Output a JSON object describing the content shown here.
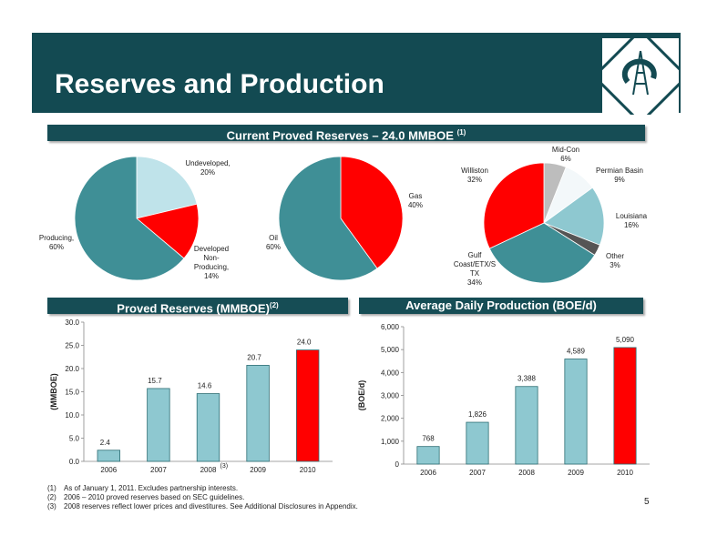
{
  "header": {
    "title": "Reserves and Production"
  },
  "sections": {
    "top_title": "Current Proved Reserves – 24.0 MMBOE",
    "top_title_sup": "(1)",
    "left_title": "Proved Reserves (MMBOE)",
    "left_title_sup": "(2)",
    "right_title": "Average Daily Production (BOE/d)"
  },
  "colors": {
    "teal": "#3f8f96",
    "light_blue": "#bfe3ea",
    "red": "#ff0000",
    "gray": "#bdbdbd",
    "mid_teal": "#8ec8d0",
    "dark_gray": "#555555",
    "header": "#134a52"
  },
  "chart_data": [
    {
      "type": "pie",
      "labels": [
        "Undeveloped, 20%",
        "Developed Non-Producing, 14%",
        "Producing, 60%"
      ],
      "values": [
        20,
        14,
        60
      ]
    },
    {
      "type": "pie",
      "labels": [
        "Gas 40%",
        "Oil 60%"
      ],
      "values": [
        40,
        60
      ]
    },
    {
      "type": "pie",
      "labels": [
        "Mid-Con 6%",
        "Permian Basin 9%",
        "Louisiana 16%",
        "Other 3%",
        "Gulf Coast/ETX/S TX 34%",
        "Williston 32%"
      ],
      "values": [
        6,
        9,
        16,
        3,
        34,
        32
      ]
    },
    {
      "type": "bar",
      "categories": [
        "2006",
        "2007",
        "2008",
        "2009",
        "2010"
      ],
      "values": [
        2.4,
        15.7,
        14.6,
        20.7,
        24.0
      ],
      "value_labels": [
        "2.4",
        "15.7",
        "14.6",
        "20.7",
        "24.0"
      ],
      "ylabel": "(MMBOE)",
      "ylim": [
        0,
        30
      ],
      "yticks": [
        "0.0",
        "5.0",
        "10.0",
        "15.0",
        "20.0",
        "25.0",
        "30.0"
      ],
      "footnote_marker": "(3)"
    },
    {
      "type": "bar",
      "categories": [
        "2006",
        "2007",
        "2008",
        "2009",
        "2010"
      ],
      "values": [
        768,
        1826,
        3388,
        4589,
        5090
      ],
      "value_labels": [
        "768",
        "1,826",
        "3,388",
        "4,589",
        "5,090"
      ],
      "ylabel": "(BOE/d)",
      "ylim": [
        0,
        6000
      ],
      "yticks": [
        "0",
        "1,000",
        "2,000",
        "3,000",
        "4,000",
        "5,000",
        "6,000"
      ]
    }
  ],
  "pie_labels": {
    "undeveloped": [
      "Undeveloped,",
      "20%"
    ],
    "developed": [
      "Developed",
      "Non-",
      "Producing,",
      "14%"
    ],
    "producing": [
      "Producing,",
      "60%"
    ],
    "gas": [
      "Gas",
      "40%"
    ],
    "oil": [
      "Oil",
      "60%"
    ],
    "midcon": [
      "Mid-Con",
      "6%"
    ],
    "permian": [
      "Permian Basin",
      "9%"
    ],
    "louisiana": [
      "Louisiana",
      "16%"
    ],
    "other": [
      "Other",
      "3%"
    ],
    "gulf": [
      "Gulf",
      "Coast/ETX/S",
      "TX",
      "34%"
    ],
    "williston": [
      "Williston",
      "32%"
    ]
  },
  "footnotes": [
    {
      "num": "(1)",
      "text": "As of  January 1, 2011. Excludes partnership interests."
    },
    {
      "num": "(2)",
      "text": "2006 – 2010 proved reserves based on SEC guidelines."
    },
    {
      "num": "(3)",
      "text": "2008 reserves reflect lower prices and divestitures.  See Additional Disclosures in Appendix."
    }
  ],
  "page_number": "5"
}
